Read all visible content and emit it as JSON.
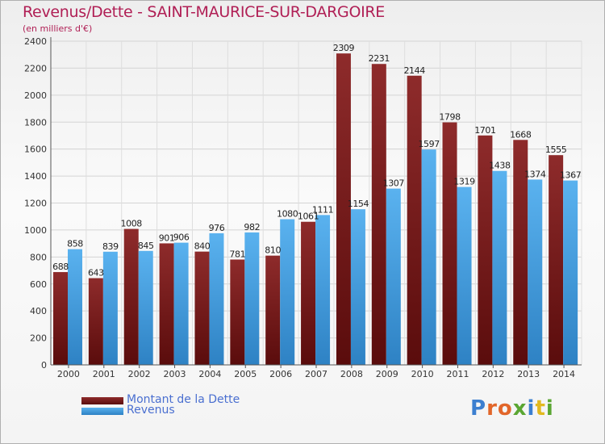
{
  "header": {
    "title": "Revenus/Dette - SAINT-MAURICE-SUR-DARGOIRE",
    "subtitle": "(en milliers d'€)"
  },
  "legend": {
    "debt_label": "Montant de la Dette",
    "revenue_label": "Revenus"
  },
  "brand": {
    "text": "Proxiti"
  },
  "colors": {
    "debt": "#7a1a1a",
    "revenue": "#4ba6e8",
    "title": "#b01f55",
    "legend_text": "#4a6fd0"
  },
  "chart_data": {
    "type": "bar",
    "title": "Revenus/Dette - SAINT-MAURICE-SUR-DARGOIRE",
    "ylabel": "(en milliers d'€)",
    "categories": [
      "2000",
      "2001",
      "2002",
      "2003",
      "2004",
      "2005",
      "2006",
      "2007",
      "2008",
      "2009",
      "2010",
      "2011",
      "2012",
      "2013",
      "2014"
    ],
    "series": [
      {
        "name": "Montant de la Dette",
        "values": [
          688,
          643,
          1008,
          901,
          840,
          781,
          810,
          1061,
          2309,
          2231,
          2144,
          1798,
          1701,
          1668,
          1555
        ]
      },
      {
        "name": "Revenus",
        "values": [
          858,
          839,
          845,
          906,
          976,
          982,
          1080,
          1111,
          1154,
          1307,
          1597,
          1319,
          1438,
          1374,
          1367
        ]
      }
    ],
    "ylim": [
      0,
      2400
    ],
    "yticks": [
      0,
      200,
      400,
      600,
      800,
      1000,
      1200,
      1400,
      1600,
      1800,
      2000,
      2200,
      2400
    ],
    "grid": true,
    "legend_position": "bottom-left"
  }
}
